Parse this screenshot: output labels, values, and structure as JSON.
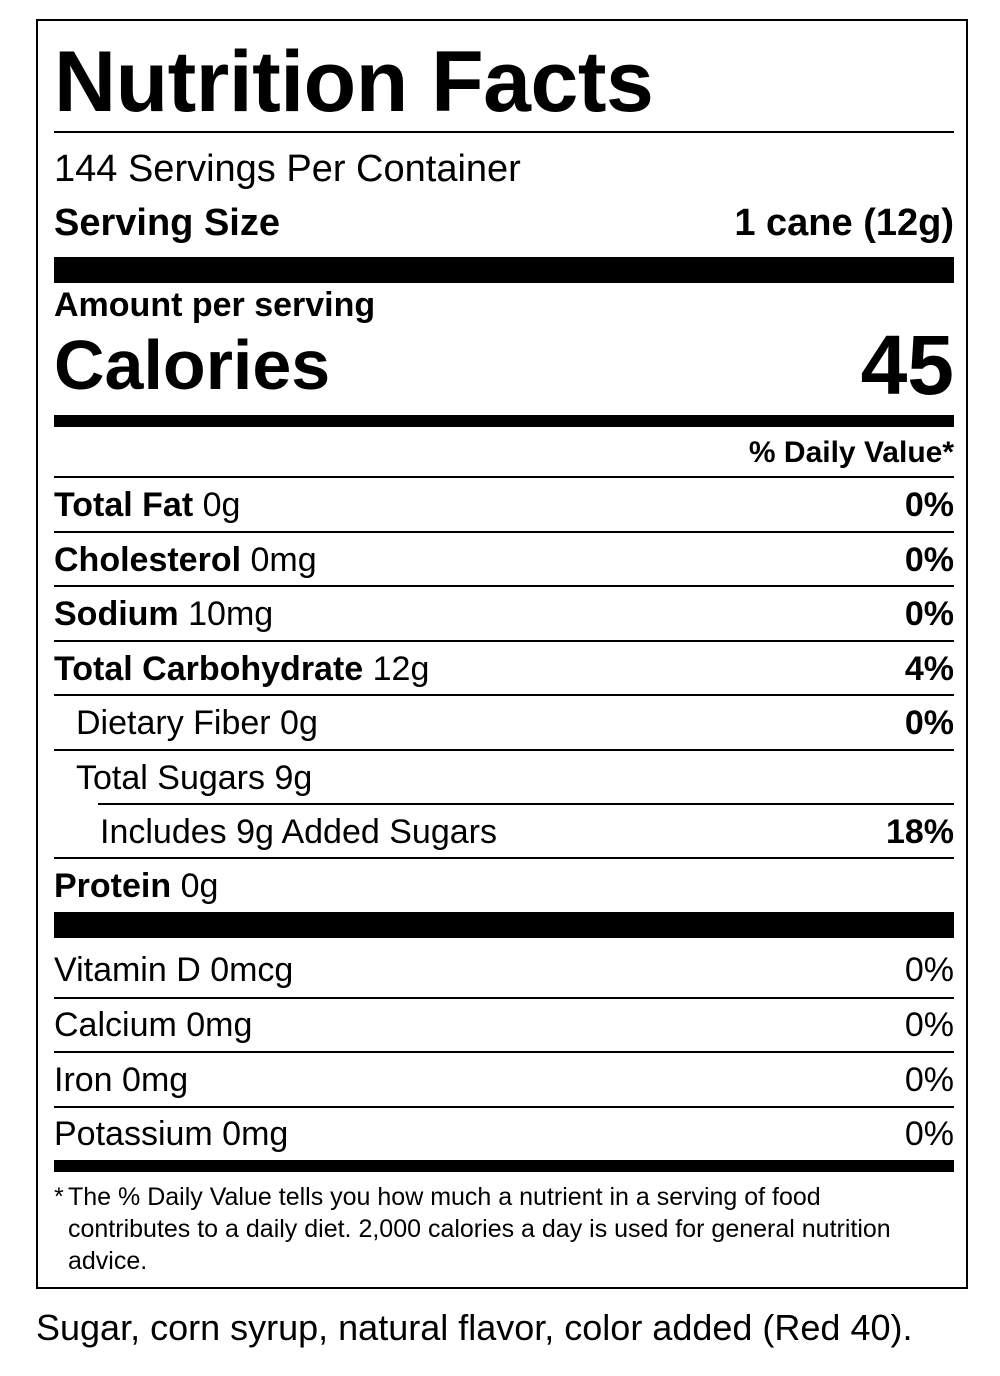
{
  "label": {
    "title": "Nutrition Facts",
    "servings_per_container": "144 Servings Per Container",
    "serving_size_label": "Serving Size",
    "serving_size_value": "1 cane (12g)",
    "amount_per_serving": "Amount per serving",
    "calories_label": "Calories",
    "calories_value": "45",
    "daily_value_header": "% Daily Value*",
    "nutrients": [
      {
        "name": "Total Fat",
        "amount": "0g",
        "dv": "0%"
      },
      {
        "name": "Cholesterol",
        "amount": "0mg",
        "dv": "0%"
      },
      {
        "name": "Sodium",
        "amount": "10mg",
        "dv": "0%"
      },
      {
        "name": "Total Carbohydrate",
        "amount": "12g",
        "dv": "4%"
      },
      {
        "name": "Dietary Fiber 0g",
        "dv": "0%"
      },
      {
        "name": "Total Sugars 9g"
      },
      {
        "name": "Includes 9g Added Sugars",
        "dv": "18%"
      },
      {
        "name": "Protein",
        "amount": "0g"
      }
    ],
    "vitamins": [
      {
        "name": "Vitamin D 0mcg",
        "dv": "0%"
      },
      {
        "name": "Calcium 0mg",
        "dv": "0%"
      },
      {
        "name": "Iron 0mg",
        "dv": "0%"
      },
      {
        "name": "Potassium 0mg",
        "dv": "0%"
      }
    ],
    "footnote_marker": "*",
    "footnote_text": "The % Daily Value tells you how much a nutrient in a serving of food contributes to a daily diet. 2,000 calories a day is used for general nutrition advice."
  },
  "ingredients": "Sugar, corn syrup, natural flavor, color added (Red 40)."
}
